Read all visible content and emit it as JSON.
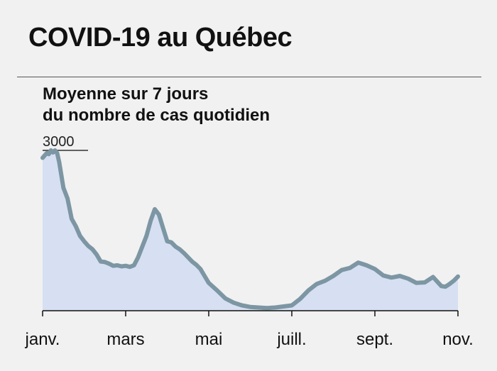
{
  "header": {
    "title": "COVID-19 au Québec",
    "subtitle_line1": "Moyenne sur 7 jours",
    "subtitle_line2": "du nombre de cas quotidien"
  },
  "colors": {
    "background": "#f1f1f1",
    "area_fill": "#d6e0f2",
    "line": "#7d96a3"
  },
  "chart_data": {
    "type": "area",
    "ylabel": "",
    "xlabel": "",
    "ylim": [
      0,
      3000
    ],
    "y_ticks": [
      3000
    ],
    "y_tick_labels": [
      "3000"
    ],
    "x_ticks": [
      0,
      2,
      4,
      6,
      8,
      10
    ],
    "x_tick_labels": [
      "janv.",
      "mars",
      "mai",
      "juill.",
      "sept.",
      "nov."
    ],
    "xlim": [
      0,
      10
    ],
    "grid": false,
    "legend": "none",
    "series": [
      {
        "x": [
          0,
          0.1,
          0.15,
          0.2,
          0.25,
          0.3,
          0.35,
          0.4,
          0.5,
          0.6,
          0.7,
          0.8,
          0.9,
          1.0,
          1.1,
          1.2,
          1.3,
          1.4,
          1.5,
          1.6,
          1.7,
          1.8,
          1.9,
          2.0,
          2.1,
          2.2,
          2.3,
          2.4,
          2.5,
          2.6,
          2.7,
          2.8,
          2.9,
          3.0,
          3.1,
          3.2,
          3.3,
          3.4,
          3.5,
          3.6,
          3.7,
          3.8,
          3.9,
          4.0,
          4.2,
          4.4,
          4.6,
          4.8,
          5.0,
          5.2,
          5.4,
          5.6,
          5.8,
          6.0,
          6.2,
          6.4,
          6.6,
          6.8,
          7.0,
          7.2,
          7.4,
          7.6,
          7.8,
          8.0,
          8.2,
          8.4,
          8.6,
          8.8,
          9.0,
          9.2,
          9.4,
          9.6,
          9.7,
          9.8,
          9.9,
          10.0
        ],
        "values": [
          2860,
          2950,
          2930,
          3000,
          2960,
          3000,
          2950,
          2780,
          2300,
          2100,
          1720,
          1580,
          1400,
          1300,
          1210,
          1150,
          1050,
          920,
          910,
          880,
          840,
          850,
          830,
          840,
          820,
          850,
          1000,
          1200,
          1400,
          1680,
          1900,
          1800,
          1550,
          1300,
          1280,
          1200,
          1150,
          1080,
          1000,
          920,
          860,
          780,
          650,
          520,
          380,
          230,
          150,
          100,
          70,
          60,
          50,
          60,
          80,
          100,
          220,
          380,
          500,
          560,
          650,
          760,
          800,
          900,
          850,
          780,
          660,
          620,
          650,
          600,
          520,
          530,
          630,
          460,
          450,
          500,
          560,
          640
        ]
      }
    ]
  }
}
